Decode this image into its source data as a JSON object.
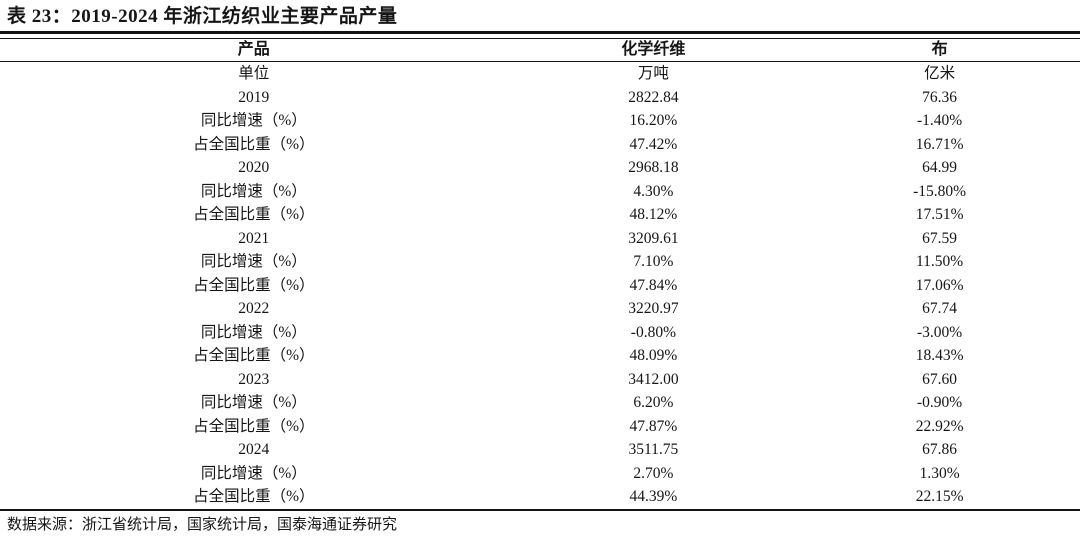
{
  "title": "表 23：2019-2024 年浙江纺织业主要产品产量",
  "source_note": "数据来源：浙江省统计局，国家统计局，国泰海通证券研究",
  "colors": {
    "text": "#161616",
    "rule": "#141414",
    "background": "#ffffff"
  },
  "chart_data": {
    "type": "table",
    "title": "表 23：2019-2024 年浙江纺织业主要产品产量",
    "columns": [
      "产品",
      "化学纤维",
      "布"
    ],
    "units_row": [
      "单位",
      "万吨",
      "亿米"
    ],
    "rows": [
      [
        "2019",
        "2822.84",
        "76.36"
      ],
      [
        "同比增速（%）",
        "16.20%",
        "-1.40%"
      ],
      [
        "占全国比重（%）",
        "47.42%",
        "16.71%"
      ],
      [
        "2020",
        "2968.18",
        "64.99"
      ],
      [
        "同比增速（%）",
        "4.30%",
        "-15.80%"
      ],
      [
        "占全国比重（%）",
        "48.12%",
        "17.51%"
      ],
      [
        "2021",
        "3209.61",
        "67.59"
      ],
      [
        "同比增速（%）",
        "7.10%",
        "11.50%"
      ],
      [
        "占全国比重（%）",
        "47.84%",
        "17.06%"
      ],
      [
        "2022",
        "3220.97",
        "67.74"
      ],
      [
        "同比增速（%）",
        "-0.80%",
        "-3.00%"
      ],
      [
        "占全国比重（%）",
        "48.09%",
        "18.43%"
      ],
      [
        "2023",
        "3412.00",
        "67.60"
      ],
      [
        "同比增速（%）",
        "6.20%",
        "-0.90%"
      ],
      [
        "占全国比重（%）",
        "47.87%",
        "22.92%"
      ],
      [
        "2024",
        "3511.75",
        "67.86"
      ],
      [
        "同比增速（%）",
        "2.70%",
        "1.30%"
      ],
      [
        "占全国比重（%）",
        "44.39%",
        "22.15%"
      ]
    ]
  }
}
